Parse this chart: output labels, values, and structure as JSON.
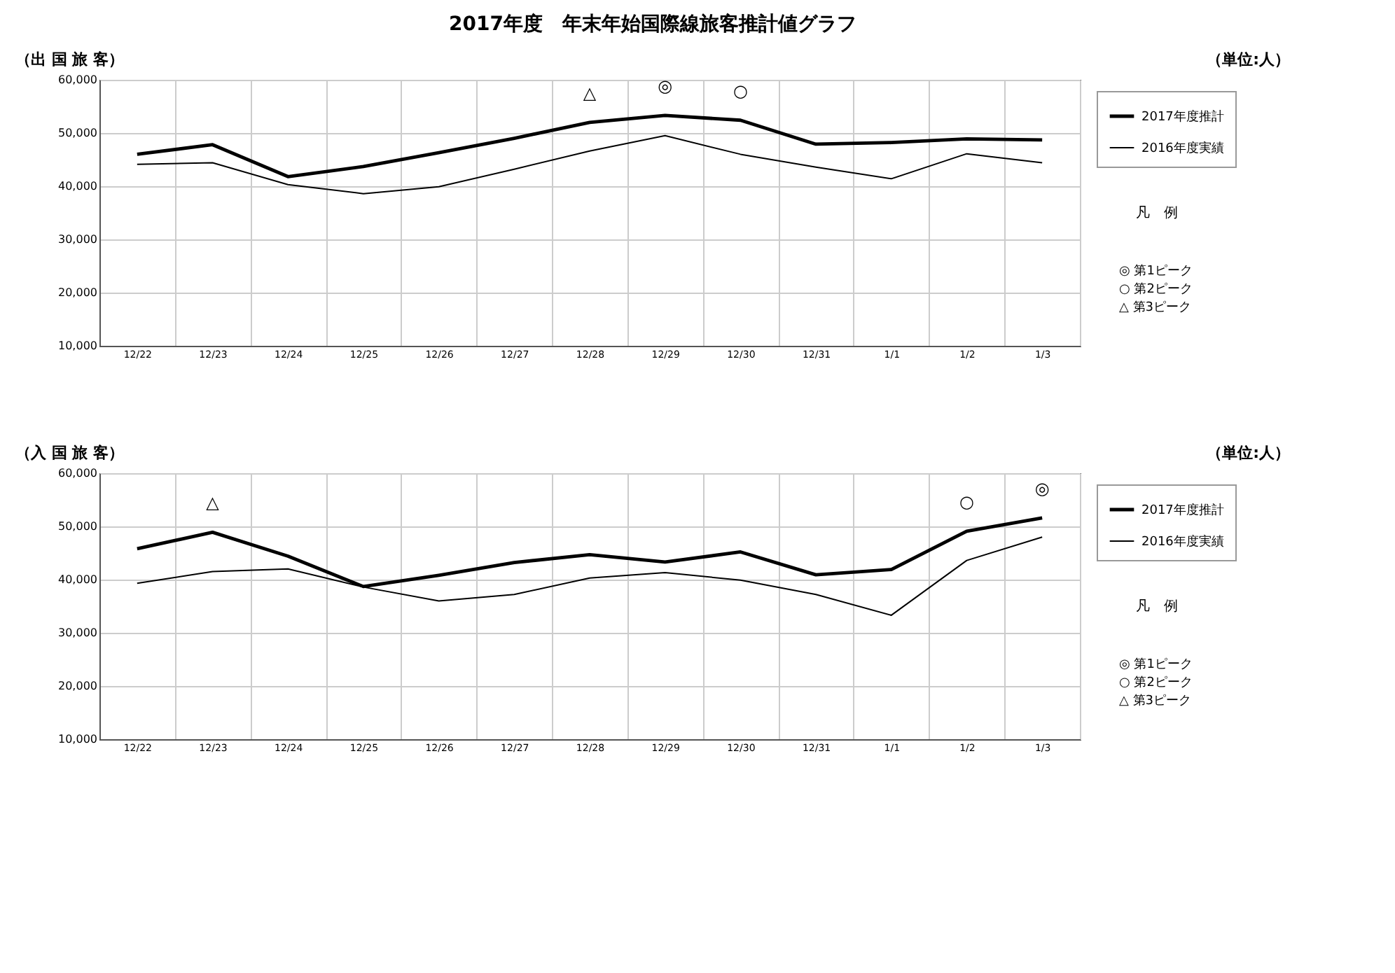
{
  "chart_data": [
    {
      "type": "line",
      "title": "2017年度　年末年始国際線旅客推計値グラフ",
      "subtitle": "（出 国 旅 客）",
      "categories": [
        "12/22",
        "12/23",
        "12/24",
        "12/25",
        "12/26",
        "12/27",
        "12/28",
        "12/29",
        "12/30",
        "12/31",
        "1/1",
        "1/2",
        "1/3"
      ],
      "series": [
        {
          "name": "2017年度推計",
          "color": "#000000",
          "values": [
            46000,
            47800,
            41800,
            43700,
            46300,
            49000,
            52000,
            53300,
            52400,
            47900,
            48200,
            48900,
            48700
          ]
        },
        {
          "name": "2016年度実績",
          "color": "#000000",
          "values": [
            44100,
            44400,
            40300,
            38600,
            39900,
            43200,
            46600,
            49500,
            46000,
            43600,
            41400,
            46100,
            44400
          ]
        }
      ],
      "ylim": [
        10000,
        60000
      ],
      "yticks": [
        {
          "value": 10000,
          "label": "10,000"
        },
        {
          "value": 20000,
          "label": "20,000"
        },
        {
          "value": 30000,
          "label": "30,000"
        },
        {
          "value": 40000,
          "label": "40,000"
        },
        {
          "value": 50000,
          "label": "50,000"
        },
        {
          "value": 60000,
          "label": "60,000"
        }
      ],
      "grid": true,
      "legend": "right",
      "marker": "none",
      "line_style": "solid",
      "annotations": [
        "（単位:人）",
        "凡　例",
        "◎ 第1ピーク",
        "○ 第2ピーク",
        "△ 第3ピーク",
        {
          "text": "△",
          "x": "12/28",
          "y": 52000
        },
        {
          "text": "◎",
          "x": "12/29",
          "y": 53300
        },
        {
          "text": "○",
          "x": "12/30",
          "y": 52400
        }
      ]
    },
    {
      "type": "line",
      "subtitle": "（入 国 旅 客）",
      "categories": [
        "12/22",
        "12/23",
        "12/24",
        "12/25",
        "12/26",
        "12/27",
        "12/28",
        "12/29",
        "12/30",
        "12/31",
        "1/1",
        "1/2",
        "1/3"
      ],
      "series": [
        {
          "name": "2017年度推計",
          "color": "#000000",
          "values": [
            45800,
            48900,
            44400,
            38700,
            40800,
            43200,
            44700,
            43300,
            45200,
            40900,
            41900,
            49100,
            51600
          ]
        },
        {
          "name": "2016年度実績",
          "color": "#000000",
          "values": [
            39300,
            41500,
            42000,
            38600,
            36000,
            37200,
            40300,
            41300,
            39900,
            37200,
            33300,
            43600,
            48000
          ]
        }
      ],
      "ylim": [
        10000,
        60000
      ],
      "yticks": [
        {
          "value": 10000,
          "label": "10,000"
        },
        {
          "value": 20000,
          "label": "20,000"
        },
        {
          "value": 30000,
          "label": "30,000"
        },
        {
          "value": 40000,
          "label": "40,000"
        },
        {
          "value": 50000,
          "label": "50,000"
        },
        {
          "value": 60000,
          "label": "60,000"
        }
      ],
      "grid": true,
      "legend": "right",
      "marker": "none",
      "line_style": "solid",
      "annotations": [
        "（単位:人）",
        "凡　例",
        "◎ 第1ピーク",
        "○ 第2ピーク",
        "△ 第3ピーク",
        {
          "text": "△",
          "x": "12/23",
          "y": 48900
        },
        {
          "text": "○",
          "x": "1/2",
          "y": 49100
        },
        {
          "text": "◎",
          "x": "1/3",
          "y": 51600
        }
      ]
    }
  ]
}
